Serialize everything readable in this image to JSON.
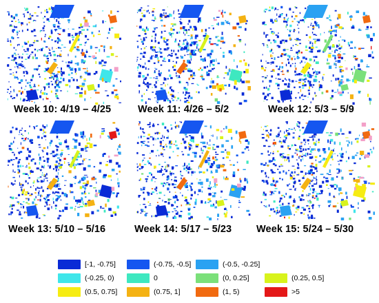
{
  "panels": [
    {
      "caption": "Week 10: 4/19 – 4/25"
    },
    {
      "caption": "Week 11: 4/26 – 5/2"
    },
    {
      "caption": "Week 12: 5/3 – 5/9"
    },
    {
      "caption": "Week 13: 5/10 – 5/16"
    },
    {
      "caption": "Week 14: 5/17 – 5/23"
    },
    {
      "caption": "Week 15: 5/24 – 5/30"
    }
  ],
  "legend": {
    "items": [
      {
        "label": "[-1, -0.75]",
        "color": "#0a2bd6"
      },
      {
        "label": "(-0.75, -0.5]",
        "color": "#1556f0"
      },
      {
        "label": "(-0.5, -0.25]",
        "color": "#2aa2f2"
      },
      {
        "label": "(-0.25, 0)",
        "color": "#3fe6ea"
      },
      {
        "label": "0",
        "color": "#3ee8c0"
      },
      {
        "label": "(0, 0.25]",
        "color": "#7be07a"
      },
      {
        "label": "(0.25, 0.5]",
        "color": "#d8f31c"
      },
      {
        "label": "(0.5, 0.75]",
        "color": "#f6ec12"
      },
      {
        "label": "(0.75, 1]",
        "color": "#f4b213"
      },
      {
        "label": "(1, 5)",
        "color": "#f16a10"
      },
      {
        "label": ">5",
        "color": "#e41818"
      }
    ]
  }
}
